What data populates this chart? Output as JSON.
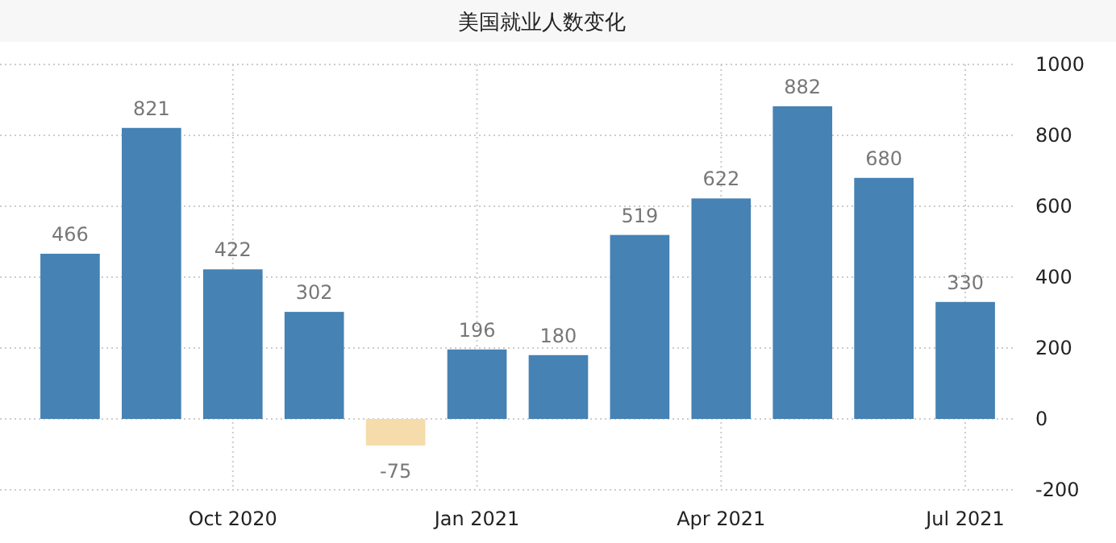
{
  "chart_data": {
    "type": "bar",
    "title": "美国就业人数变化",
    "categories": [
      null,
      null,
      "Oct 2020",
      null,
      null,
      "Jan 2021",
      null,
      null,
      "Apr 2021",
      null,
      null,
      "Jul 2021"
    ],
    "values": [
      466,
      821,
      422,
      302,
      -75,
      196,
      180,
      519,
      622,
      882,
      680,
      330
    ],
    "colors": [
      "#4682b4",
      "#4682b4",
      "#4682b4",
      "#4682b4",
      "#f5dcaa",
      "#4682b4",
      "#4682b4",
      "#4682b4",
      "#4682b4",
      "#4682b4",
      "#4682b4",
      "#4682b4"
    ],
    "ylim": [
      -200,
      1000
    ],
    "yticks": [
      -200,
      0,
      200,
      400,
      600,
      800,
      1000
    ],
    "grid": true,
    "data_labels": true
  }
}
